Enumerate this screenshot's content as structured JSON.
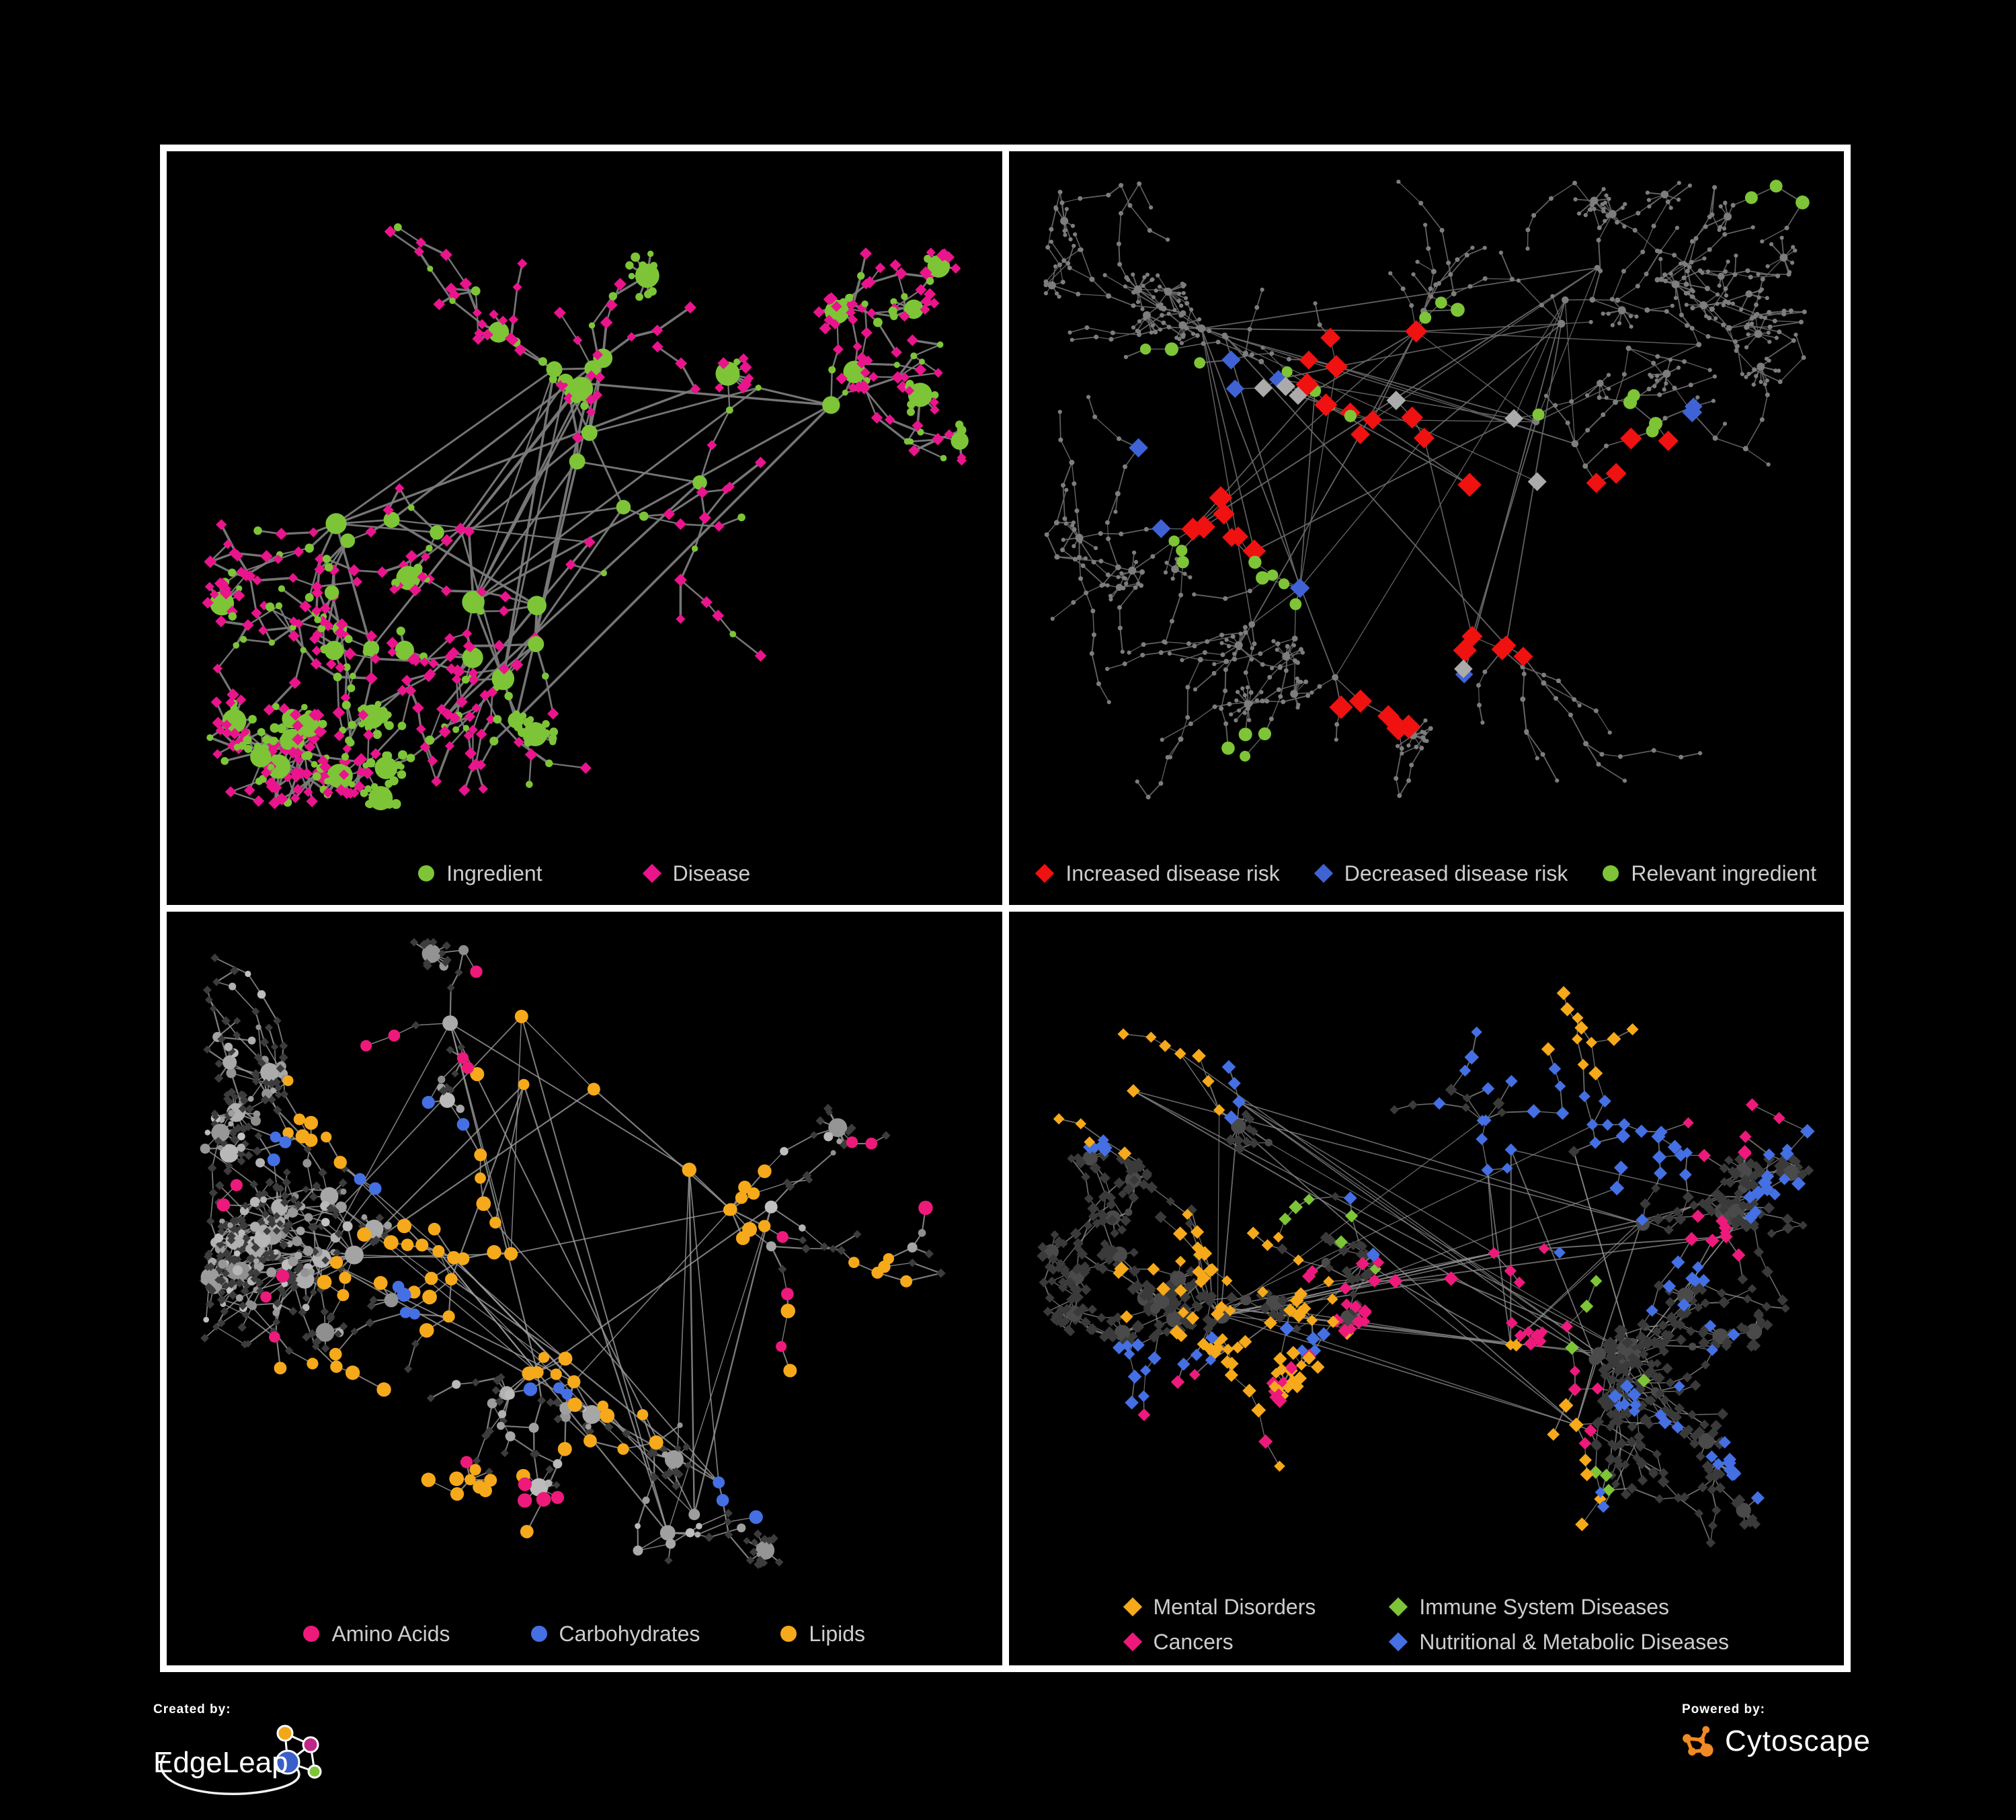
{
  "page": {
    "background": "#000000",
    "frame_color": "#FFFFFF",
    "legend_text_color": "#CDCDCD"
  },
  "panels": [
    {
      "name": "ingredient-disease-network",
      "legend": {
        "items": [
          {
            "label": "Ingredient",
            "shape": "circle",
            "color": "#7DC537"
          },
          {
            "label": "Disease",
            "shape": "diamond",
            "color": "#EA148C"
          }
        ]
      },
      "style": {
        "edge_color": "#7B7B7B",
        "edge_opacity": 0.95
      }
    },
    {
      "name": "disease-risk-network",
      "legend": {
        "items": [
          {
            "label": "Increased disease risk",
            "shape": "diamond",
            "color": "#F01111"
          },
          {
            "label": "Decreased disease risk",
            "shape": "diamond",
            "color": "#3F63D4"
          },
          {
            "label": "Relevant ingredient",
            "shape": "circle",
            "color": "#7DC537"
          }
        ]
      },
      "style": {
        "edge_color": "#6A6A6A",
        "edge_opacity": 0.9,
        "node_base": "#7D7D7D",
        "node_neutral": "#ABABAB"
      }
    },
    {
      "name": "nutrient-class-network",
      "legend": {
        "items": [
          {
            "label": "Amino Acids",
            "shape": "circle",
            "color": "#ED1A7B"
          },
          {
            "label": "Carbohydrates",
            "shape": "circle",
            "color": "#4470E4"
          },
          {
            "label": "Lipids",
            "shape": "circle",
            "color": "#F6A91A"
          }
        ]
      },
      "style": {
        "edge_color": "#9B9B9B",
        "edge_opacity": 0.8,
        "node_dark": "#3C3C3C"
      }
    },
    {
      "name": "disease-class-network",
      "legend": {
        "columns": 2,
        "items": [
          {
            "label": "Mental Disorders",
            "shape": "diamond",
            "color": "#F6A91A"
          },
          {
            "label": "Immune System Diseases",
            "shape": "diamond",
            "color": "#7DC537"
          },
          {
            "label": "Cancers",
            "shape": "diamond",
            "color": "#ED1A7B"
          },
          {
            "label": "Nutritional & Metabolic Diseases",
            "shape": "diamond",
            "color": "#4470E4"
          }
        ]
      },
      "style": {
        "edge_color": "#8D8D8D",
        "edge_opacity": 0.75,
        "node_base": "#3A3A3A",
        "node_hub": "#4A4A4A"
      }
    }
  ],
  "footer": {
    "created_by_label": "Created by:",
    "edgeleap_name": "EdgeLeap",
    "powered_by_label": "Powered by:",
    "cytoscape_name": "Cytoscape",
    "edgeleap_logo_colors": {
      "orange": "#F2A71B",
      "magenta": "#C12587",
      "blue": "#3A5FC8",
      "green": "#7DC537"
    },
    "cytoscape_logo_color": "#F08A24"
  }
}
